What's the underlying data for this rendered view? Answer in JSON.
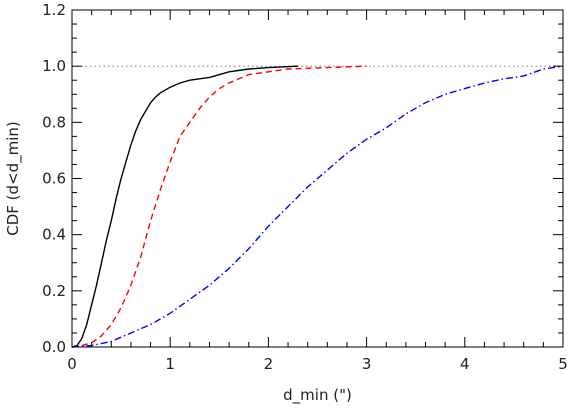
{
  "chart_data": {
    "type": "line",
    "xlabel": "d_min (\")",
    "ylabel": "CDF (d<d_min)",
    "xlim": [
      0,
      5
    ],
    "ylim": [
      0,
      1.2
    ],
    "x_ticks": [
      0,
      1,
      2,
      3,
      4,
      5
    ],
    "x_tick_labels": [
      "0",
      "1",
      "2",
      "3",
      "4",
      "5"
    ],
    "y_ticks": [
      0,
      0.2,
      0.4,
      0.6,
      0.8,
      1.0,
      1.2
    ],
    "y_tick_labels": [
      "0.0",
      "0.2",
      "0.4",
      "0.6",
      "0.8",
      "1.0",
      "1.2"
    ],
    "grid": false,
    "reference_line": {
      "y": 1.0,
      "style": "dotted",
      "color": "#888888"
    },
    "series": [
      {
        "style": "solid",
        "color": "#000000",
        "points": [
          [
            0,
            0
          ],
          [
            0.05,
            0.005
          ],
          [
            0.1,
            0.03
          ],
          [
            0.15,
            0.08
          ],
          [
            0.2,
            0.15
          ],
          [
            0.25,
            0.22
          ],
          [
            0.3,
            0.3
          ],
          [
            0.35,
            0.38
          ],
          [
            0.4,
            0.45
          ],
          [
            0.45,
            0.53
          ],
          [
            0.5,
            0.6
          ],
          [
            0.55,
            0.66
          ],
          [
            0.6,
            0.72
          ],
          [
            0.65,
            0.77
          ],
          [
            0.7,
            0.81
          ],
          [
            0.75,
            0.84
          ],
          [
            0.8,
            0.87
          ],
          [
            0.85,
            0.89
          ],
          [
            0.9,
            0.905
          ],
          [
            1.0,
            0.925
          ],
          [
            1.1,
            0.94
          ],
          [
            1.2,
            0.95
          ],
          [
            1.4,
            0.96
          ],
          [
            1.6,
            0.98
          ],
          [
            1.8,
            0.99
          ],
          [
            2.0,
            0.995
          ],
          [
            2.3,
            1.0
          ]
        ]
      },
      {
        "style": "dashed",
        "color": "#ff0000",
        "points": [
          [
            0,
            0
          ],
          [
            0.1,
            0.005
          ],
          [
            0.2,
            0.015
          ],
          [
            0.3,
            0.04
          ],
          [
            0.4,
            0.08
          ],
          [
            0.5,
            0.14
          ],
          [
            0.6,
            0.22
          ],
          [
            0.7,
            0.32
          ],
          [
            0.8,
            0.45
          ],
          [
            0.9,
            0.56
          ],
          [
            1.0,
            0.66
          ],
          [
            1.1,
            0.75
          ],
          [
            1.2,
            0.8
          ],
          [
            1.3,
            0.85
          ],
          [
            1.4,
            0.89
          ],
          [
            1.5,
            0.92
          ],
          [
            1.6,
            0.94
          ],
          [
            1.8,
            0.97
          ],
          [
            2.0,
            0.98
          ],
          [
            2.2,
            0.99
          ],
          [
            2.6,
            0.995
          ],
          [
            3.0,
            1.0
          ]
        ]
      },
      {
        "style": "dashdot",
        "color": "#0000ff",
        "points": [
          [
            0,
            0
          ],
          [
            0.2,
            0.005
          ],
          [
            0.4,
            0.02
          ],
          [
            0.6,
            0.05
          ],
          [
            0.8,
            0.08
          ],
          [
            1.0,
            0.12
          ],
          [
            1.2,
            0.17
          ],
          [
            1.4,
            0.22
          ],
          [
            1.6,
            0.28
          ],
          [
            1.8,
            0.35
          ],
          [
            2.0,
            0.43
          ],
          [
            2.2,
            0.5
          ],
          [
            2.4,
            0.57
          ],
          [
            2.6,
            0.63
          ],
          [
            2.8,
            0.69
          ],
          [
            3.0,
            0.74
          ],
          [
            3.2,
            0.78
          ],
          [
            3.4,
            0.83
          ],
          [
            3.6,
            0.87
          ],
          [
            3.8,
            0.9
          ],
          [
            4.0,
            0.92
          ],
          [
            4.2,
            0.94
          ],
          [
            4.4,
            0.955
          ],
          [
            4.6,
            0.965
          ],
          [
            4.8,
            0.99
          ],
          [
            5.0,
            1.0
          ]
        ]
      }
    ]
  }
}
